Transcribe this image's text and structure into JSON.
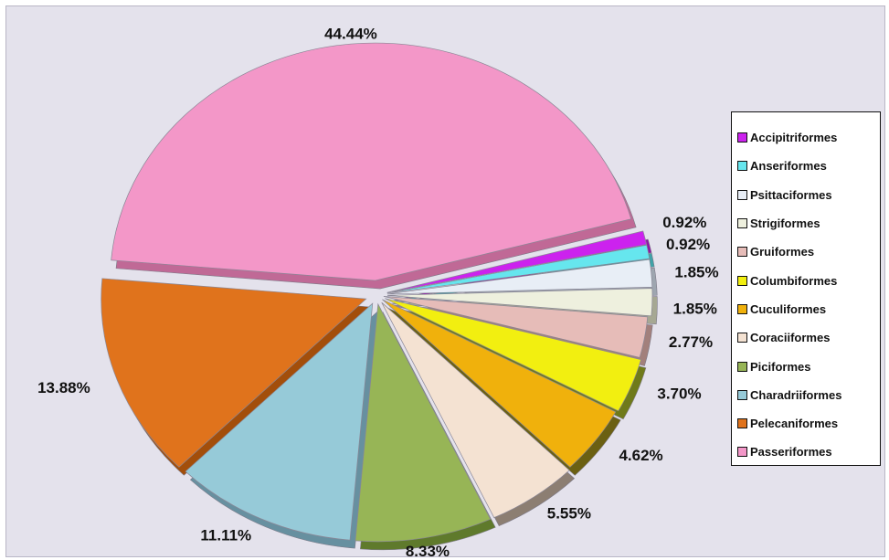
{
  "chart_data": {
    "type": "pie",
    "style": "3d-exploded",
    "legend_position": "right",
    "series": [
      {
        "label": "Accipitriformes",
        "value": 0.92,
        "value_label": "0.92%",
        "color": "#cc22ee",
        "side_color": "#8e17a6"
      },
      {
        "label": "Anseriformes",
        "value": 0.92,
        "value_label": "0.92%",
        "color": "#66e6ee",
        "side_color": "#3fa3a8"
      },
      {
        "label": "Psittaciformes",
        "value": 1.85,
        "value_label": "1.85%",
        "color": "#e8eef6",
        "side_color": "#9ea6b0"
      },
      {
        "label": "Strigiformes",
        "value": 1.85,
        "value_label": "1.85%",
        "color": "#eef0de",
        "side_color": "#a6a893"
      },
      {
        "label": "Gruiformes",
        "value": 2.77,
        "value_label": "2.77%",
        "color": "#e6bcb8",
        "side_color": "#a2807c"
      },
      {
        "label": "Columbiformes",
        "value": 3.7,
        "value_label": "3.70%",
        "color": "#f2ef10",
        "side_color": "#6f7a1a"
      },
      {
        "label": "Cuculiformes",
        "value": 4.62,
        "value_label": "4.62%",
        "color": "#f0b10c",
        "side_color": "#6b6012"
      },
      {
        "label": "Coraciiformes",
        "value": 5.55,
        "value_label": "5.55%",
        "color": "#f4e2d2",
        "side_color": "#8c7e72"
      },
      {
        "label": "Piciformes",
        "value": 8.33,
        "value_label": "8.33%",
        "color": "#97b556",
        "side_color": "#5f7a2c"
      },
      {
        "label": "Charadriiformes",
        "value": 11.11,
        "value_label": "11.11%",
        "color": "#96cad8",
        "side_color": "#6790a0"
      },
      {
        "label": "Pelecaniformes",
        "value": 13.88,
        "value_label": "13.88%",
        "color": "#e0731c",
        "side_color": "#a34e0a"
      },
      {
        "label": "Passeriformes",
        "value": 44.44,
        "value_label": "44.44%",
        "color": "#f397c8",
        "side_color": "#c06996"
      }
    ]
  }
}
